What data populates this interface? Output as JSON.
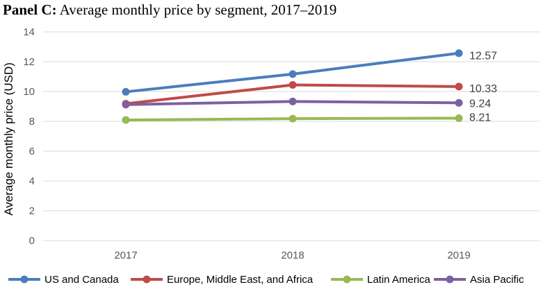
{
  "title": {
    "panel": "Panel C:",
    "text": "Average monthly price by segment, 2017–2019"
  },
  "chart_data": {
    "type": "line",
    "title": "Panel C: Average monthly price by segment, 2017–2019",
    "xlabel": "",
    "ylabel": "Average monthly price (USD)",
    "categories": [
      "2017",
      "2018",
      "2019"
    ],
    "ylim": [
      0,
      14
    ],
    "yticks": [
      0,
      2,
      4,
      6,
      8,
      10,
      12,
      14
    ],
    "grid": true,
    "legend_position": "bottom",
    "series": [
      {
        "name": "US and Canada",
        "color": "#4a7ebb",
        "values": [
          9.98,
          11.17,
          12.57
        ],
        "end_label": "12.57"
      },
      {
        "name": "Europe, Middle East, and Africa",
        "color": "#be4b48",
        "values": [
          9.18,
          10.44,
          10.33
        ],
        "end_label": "10.33"
      },
      {
        "name": "Latin America",
        "color": "#98b954",
        "values": [
          8.09,
          8.18,
          8.21
        ],
        "end_label": "8.21"
      },
      {
        "name": "Asia Pacific",
        "color": "#7d60a0",
        "values": [
          9.12,
          9.33,
          9.24
        ],
        "end_label": "9.24"
      }
    ]
  }
}
